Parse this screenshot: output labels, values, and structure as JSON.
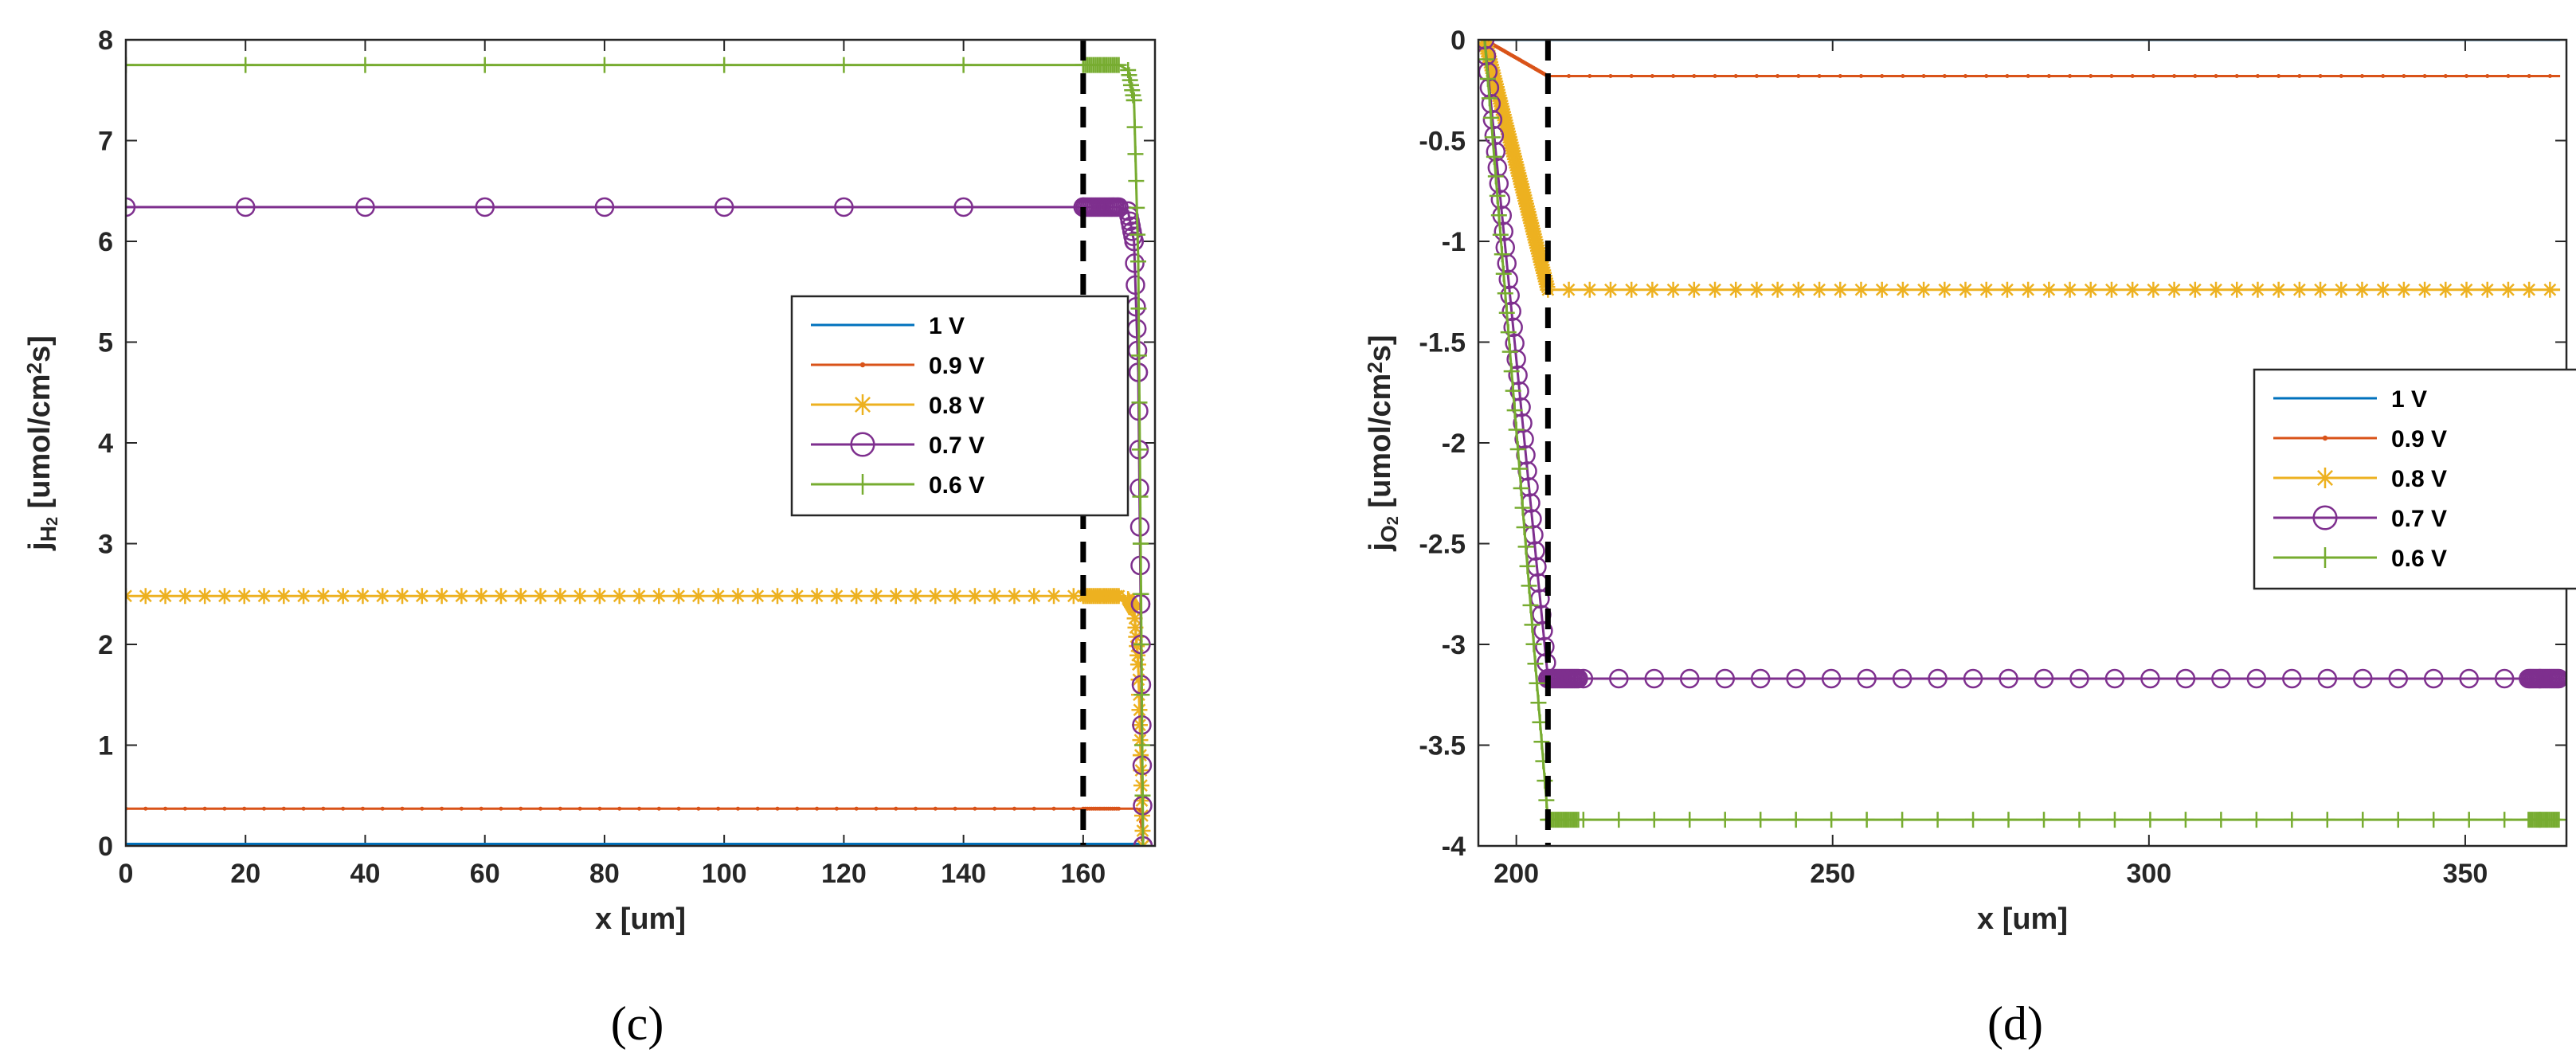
{
  "chart_data": [
    {
      "type": "line",
      "panel_label": "(c)",
      "xlabel": "x [um]",
      "ylabel": "j",
      "ylabel_sub": "H",
      "ylabel_subsub": "2",
      "ylabel_unit": " [umol/cm",
      "ylabel_unit_sup": "2",
      "ylabel_unit_end": "s]",
      "xlim": [
        0,
        172
      ],
      "ylim": [
        0,
        8
      ],
      "xticks": [
        0,
        20,
        40,
        60,
        80,
        100,
        120,
        140,
        160
      ],
      "yticks": [
        0,
        1,
        2,
        3,
        4,
        5,
        6,
        7,
        8
      ],
      "boundary_x": 160,
      "legend_position": "center-right",
      "series": [
        {
          "name": "1 V",
          "color": "#0072BD",
          "marker": "none",
          "x": [
            0,
            170
          ],
          "y": [
            0.02,
            0.02
          ]
        },
        {
          "name": "0.9 V",
          "color": "#D95319",
          "marker": "dot",
          "x": [
            0,
            160,
            169,
            169.5,
            170
          ],
          "y": [
            0.37,
            0.37,
            0.37,
            0.36,
            0.0
          ]
        },
        {
          "name": "0.8 V",
          "color": "#EDB120",
          "marker": "star",
          "x": [
            0,
            160,
            166,
            167.5,
            168.5,
            169.2,
            169.6,
            170
          ],
          "y": [
            2.48,
            2.48,
            2.48,
            2.45,
            2.35,
            1.8,
            0.9,
            0.0
          ]
        },
        {
          "name": "0.7 V",
          "color": "#7E2F8E",
          "marker": "circle",
          "x": [
            0,
            160,
            166,
            167.5,
            168.5,
            169.2,
            169.6,
            170
          ],
          "y": [
            6.34,
            6.34,
            6.34,
            6.3,
            6.0,
            4.7,
            2.4,
            0.0
          ]
        },
        {
          "name": "0.6 V",
          "color": "#77AC30",
          "marker": "plus",
          "x": [
            0,
            160,
            166,
            167.5,
            168.5,
            169.2,
            169.6,
            170
          ],
          "y": [
            7.75,
            7.75,
            7.75,
            7.7,
            7.4,
            5.8,
            3.0,
            0.0
          ]
        }
      ]
    },
    {
      "type": "line",
      "panel_label": "(d)",
      "xlabel": "x [um]",
      "ylabel": "j",
      "ylabel_sub": "O",
      "ylabel_subsub": "2",
      "ylabel_unit": " [umol/cm",
      "ylabel_unit_sup": "2",
      "ylabel_unit_end": "s]",
      "xlim": [
        194,
        366
      ],
      "ylim": [
        -4,
        0
      ],
      "xticks": [
        200,
        250,
        300,
        350
      ],
      "yticks": [
        0,
        -0.5,
        -1,
        -1.5,
        -2,
        -2.5,
        -3,
        -3.5,
        -4
      ],
      "boundary_x": 205,
      "legend_position": "center-right",
      "series": [
        {
          "name": "1 V",
          "color": "#0072BD",
          "marker": "none",
          "x": [
            195,
            365
          ],
          "y": [
            0,
            0
          ]
        },
        {
          "name": "0.9 V",
          "color": "#D95319",
          "marker": "dot",
          "x": [
            195,
            205,
            365
          ],
          "y": [
            0,
            -0.18,
            -0.18
          ]
        },
        {
          "name": "0.8 V",
          "color": "#EDB120",
          "marker": "star",
          "x": [
            195,
            205,
            365
          ],
          "y": [
            0,
            -1.24,
            -1.24
          ]
        },
        {
          "name": "0.7 V",
          "color": "#7E2F8E",
          "marker": "circle",
          "x": [
            195,
            205,
            365
          ],
          "y": [
            0,
            -3.17,
            -3.17
          ]
        },
        {
          "name": "0.6 V",
          "color": "#77AC30",
          "marker": "plus",
          "x": [
            195,
            205,
            365
          ],
          "y": [
            0,
            -3.87,
            -3.87
          ]
        }
      ]
    }
  ]
}
